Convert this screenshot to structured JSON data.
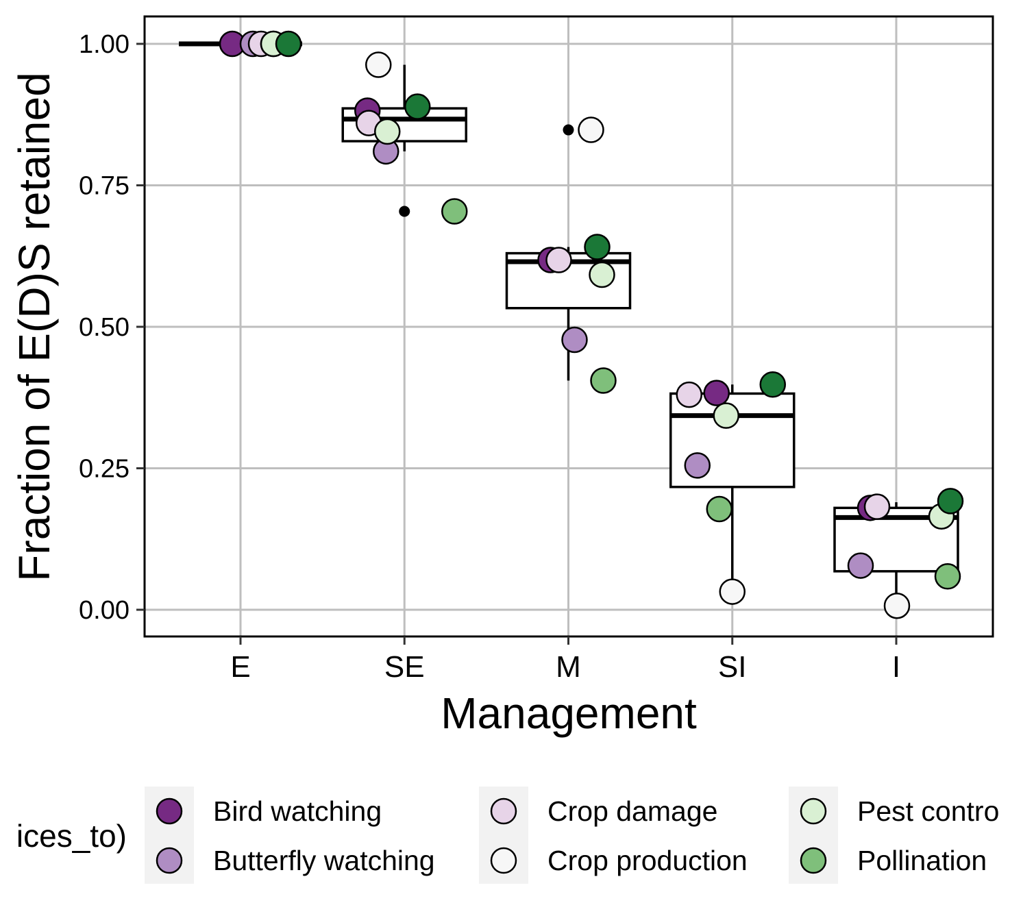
{
  "chart_data": {
    "type": "box",
    "title": "",
    "xlabel": "Management",
    "ylabel": "Fraction of E(D)S retained",
    "categories": [
      "E",
      "SE",
      "M",
      "SI",
      "I"
    ],
    "ylim": [
      -0.05,
      1.05
    ],
    "yticks": [
      0.0,
      0.25,
      0.5,
      0.75,
      1.0
    ],
    "ytick_labels": [
      "0.00",
      "0.25",
      "0.50",
      "0.75",
      "1.00"
    ],
    "grid": true,
    "legend_position": "bottom",
    "legend_title": "ices_to)",
    "boxes": [
      {
        "category": "E",
        "lower_whisker": 1.0,
        "q1": 1.0,
        "median": 1.0,
        "q3": 1.0,
        "upper_whisker": 1.0,
        "outliers": []
      },
      {
        "category": "SE",
        "lower_whisker": 0.81,
        "q1": 0.828,
        "median": 0.867,
        "q3": 0.886,
        "upper_whisker": 0.963,
        "outliers": [
          0.704
        ]
      },
      {
        "category": "M",
        "lower_whisker": 0.405,
        "q1": 0.533,
        "median": 0.615,
        "q3": 0.63,
        "upper_whisker": 0.641,
        "outliers": [
          0.848
        ]
      },
      {
        "category": "SI",
        "lower_whisker": 0.032,
        "q1": 0.217,
        "median": 0.343,
        "q3": 0.382,
        "upper_whisker": 0.398,
        "outliers": []
      },
      {
        "category": "I",
        "lower_whisker": 0.007,
        "q1": 0.068,
        "median": 0.163,
        "q3": 0.18,
        "upper_whisker": 0.19,
        "outliers": []
      }
    ],
    "series": [
      {
        "name": "Bird watching",
        "color": "#762a83",
        "values": [
          1.0,
          0.882,
          0.618,
          0.383,
          0.18
        ]
      },
      {
        "name": "Butterfly watching",
        "color": "#af8dc3",
        "values": [
          1.0,
          0.81,
          0.477,
          0.255,
          0.078
        ]
      },
      {
        "name": "Crop damage",
        "color": "#e7d4e8",
        "values": [
          1.0,
          0.86,
          0.618,
          0.38,
          0.182
        ]
      },
      {
        "name": "Crop production",
        "color": "#f7f7f7",
        "values": [
          1.0,
          0.963,
          0.848,
          0.032,
          0.007
        ]
      },
      {
        "name": "Pest control",
        "color": "#d9f0d3",
        "values": [
          1.0,
          0.845,
          0.592,
          0.343,
          0.165
        ]
      },
      {
        "name": "Pollination",
        "color": "#7fbf7b",
        "values": [
          null,
          0.704,
          0.405,
          0.178,
          0.059
        ]
      },
      {
        "name": "",
        "color": "#1b7837",
        "values": [
          1.0,
          0.889,
          0.641,
          0.398,
          0.192
        ]
      }
    ],
    "legend_entries": [
      {
        "label": "Bird watching",
        "color": "#762a83"
      },
      {
        "label": "Butterfly watching",
        "color": "#af8dc3"
      },
      {
        "label": "Crop damage",
        "color": "#e7d4e8"
      },
      {
        "label": "Crop production",
        "color": "#f7f7f7"
      },
      {
        "label": "Pest contro",
        "color": "#d9f0d3"
      },
      {
        "label": "Pollination",
        "color": "#7fbf7b"
      }
    ]
  }
}
